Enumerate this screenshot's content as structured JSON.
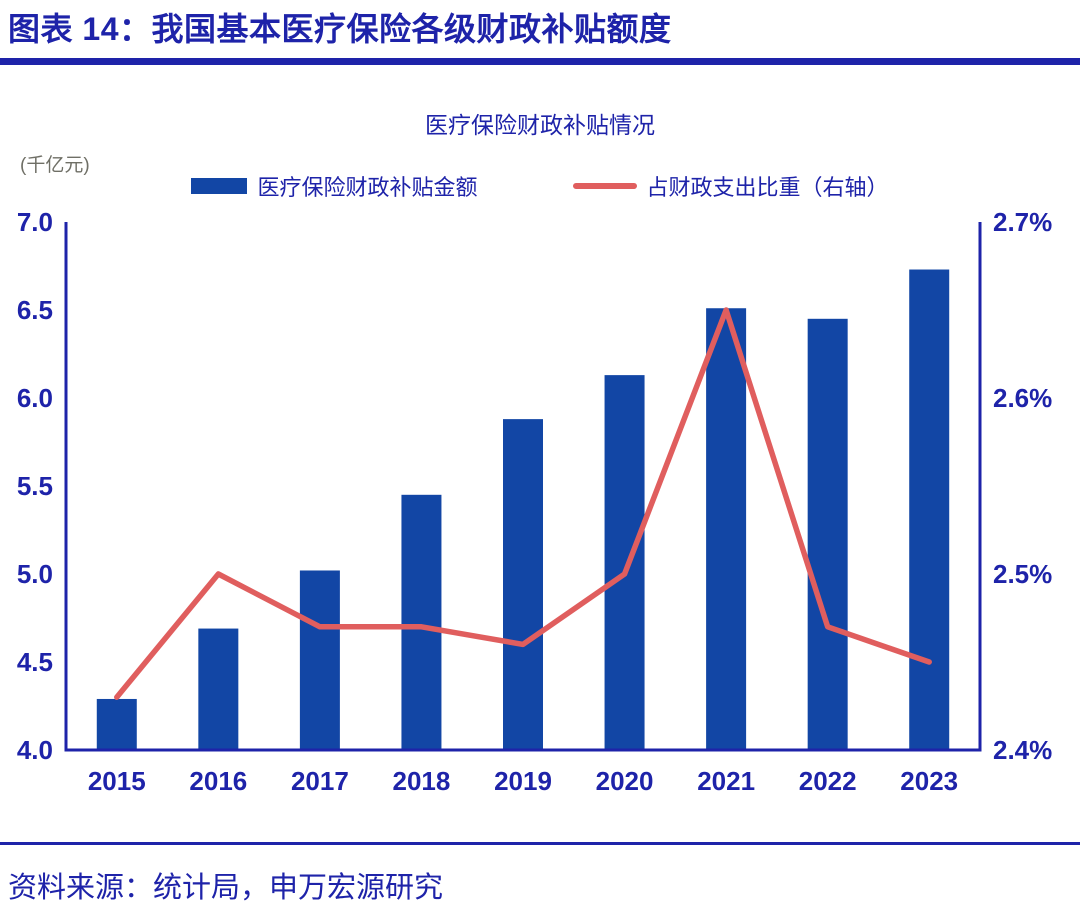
{
  "header": {
    "title": "图表 14：我国基本医疗保险各级财政补贴额度"
  },
  "chart": {
    "title": "医疗保险财政补贴情况",
    "unit_label": "(千亿元)",
    "legend": [
      {
        "label": "医疗保险财政补贴金额",
        "type": "bar"
      },
      {
        "label": "占财政支出比重（右轴）",
        "type": "line"
      }
    ]
  },
  "chart_data": {
    "type": "bar",
    "title": "医疗保险财政补贴情况",
    "categories": [
      "2015",
      "2016",
      "2017",
      "2018",
      "2019",
      "2020",
      "2021",
      "2022",
      "2023"
    ],
    "series": [
      {
        "name": "医疗保险财政补贴金额",
        "type": "bar",
        "axis": "left",
        "values": [
          4.29,
          4.69,
          5.02,
          5.45,
          5.88,
          6.13,
          6.51,
          6.45,
          6.73
        ]
      },
      {
        "name": "占财政支出比重（右轴）",
        "type": "line",
        "axis": "right",
        "values": [
          2.43,
          2.5,
          2.47,
          2.47,
          2.46,
          2.5,
          2.65,
          2.47,
          2.45
        ]
      }
    ],
    "left_axis": {
      "label": "(千亿元)",
      "min": 4.0,
      "max": 7.0,
      "ticks": [
        {
          "value": 7.0,
          "label": "7.0"
        },
        {
          "value": 6.5,
          "label": "6.5"
        },
        {
          "value": 6.0,
          "label": "6.0"
        },
        {
          "value": 5.5,
          "label": "5.5"
        },
        {
          "value": 5.0,
          "label": "5.0"
        },
        {
          "value": 4.5,
          "label": "4.5"
        },
        {
          "value": 4.0,
          "label": "4.0"
        }
      ]
    },
    "right_axis": {
      "label": "占财政支出比重（右轴）",
      "min": 2.4,
      "max": 2.7,
      "ticks": [
        {
          "value": 2.7,
          "label": "2.7%"
        },
        {
          "value": 2.6,
          "label": "2.6%"
        },
        {
          "value": 2.5,
          "label": "2.5%"
        },
        {
          "value": 2.4,
          "label": "2.4%"
        }
      ]
    },
    "grid": false,
    "legend_position": "top"
  },
  "footer": {
    "source": "资料来源：统计局，申万宏源研究"
  },
  "colors": {
    "text_blue": "#1E23A9",
    "bar_blue": "#1246A5",
    "line_red": "#E05E5E",
    "unit_gray": "#6F6F66"
  }
}
